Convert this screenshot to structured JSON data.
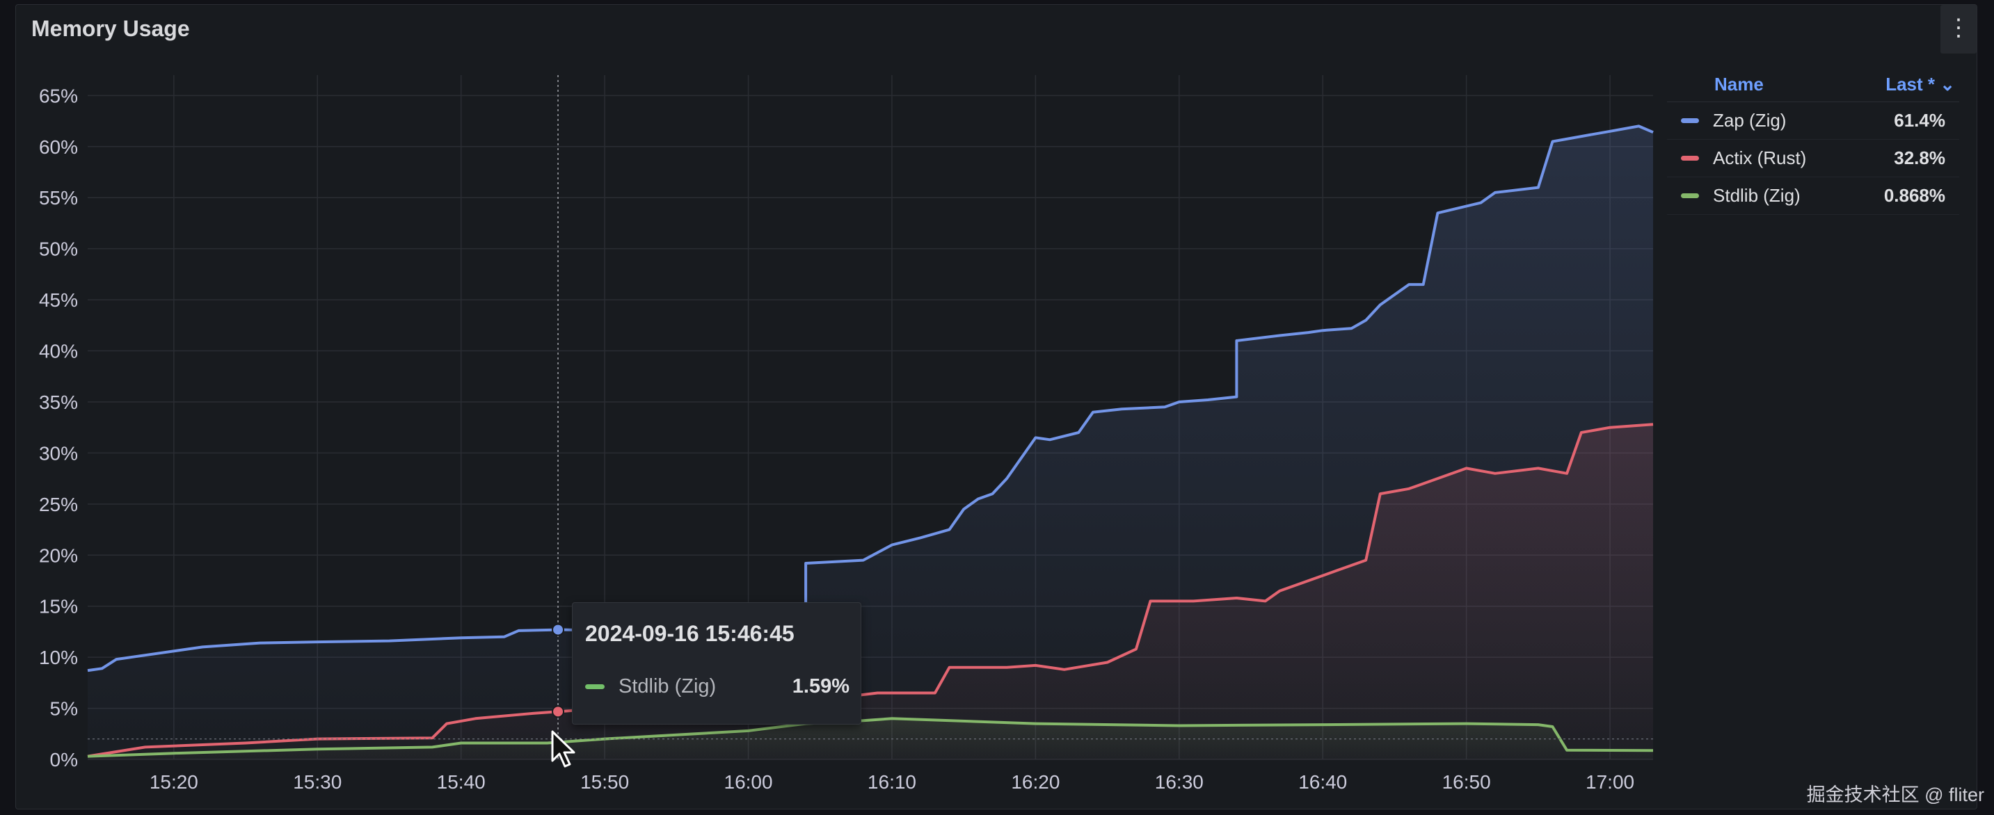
{
  "panel": {
    "title": "Memory Usage",
    "menu_icon": "⋮"
  },
  "legend": {
    "name_header": "Name",
    "last_header": "Last * ⌄",
    "items": [
      {
        "name": "Zap (Zig)",
        "value": "61.4%",
        "color": "#7395e8"
      },
      {
        "name": "Actix (Rust)",
        "value": "32.8%",
        "color": "#e36571"
      },
      {
        "name": "Stdlib (Zig)",
        "value": "0.868%",
        "color": "#85b86a"
      }
    ]
  },
  "tooltip": {
    "time": "2024-09-16 15:46:45",
    "series": "Stdlib (Zig)",
    "value": "1.59%",
    "color": "#73bf69"
  },
  "watermark": "掘金技术社区 @ fliter",
  "chart_data": {
    "type": "line",
    "title": "Memory Usage",
    "xlabel": "",
    "ylabel": "",
    "x_range": [
      "15:14",
      "17:03"
    ],
    "xticks": [
      "15:20",
      "15:30",
      "15:40",
      "15:50",
      "16:00",
      "16:10",
      "16:20",
      "16:30",
      "16:40",
      "16:50",
      "17:00"
    ],
    "xtick_minutes": [
      20,
      30,
      40,
      50,
      60,
      70,
      80,
      90,
      100,
      110,
      120
    ],
    "ylim": [
      0,
      67
    ],
    "yticks": [
      "0%",
      "5%",
      "10%",
      "15%",
      "20%",
      "25%",
      "30%",
      "35%",
      "40%",
      "45%",
      "50%",
      "55%",
      "60%",
      "65%"
    ],
    "ytick_values": [
      0,
      5,
      10,
      15,
      20,
      25,
      30,
      35,
      40,
      45,
      50,
      55,
      60,
      65
    ],
    "grid": true,
    "legend_position": "right",
    "crosshair_time": "15:46:45",
    "series": [
      {
        "name": "Zap (Zig)",
        "color": "#7395e8",
        "x": [
          "15:14",
          "15:15",
          "15:16",
          "15:18",
          "15:22",
          "15:26",
          "15:30",
          "15:35",
          "15:40",
          "15:43",
          "15:44",
          "15:47",
          "15:50",
          "15:55",
          "16:00",
          "16:04",
          "16:04",
          "16:08",
          "16:10",
          "16:12",
          "16:14",
          "16:15",
          "16:16",
          "16:17",
          "16:18",
          "16:20",
          "16:21",
          "16:23",
          "16:24",
          "16:26",
          "16:26",
          "16:29",
          "16:30",
          "16:32",
          "16:34",
          "16:34",
          "16:37",
          "16:39",
          "16:40",
          "16:42",
          "16:43",
          "16:44",
          "16:46",
          "16:47",
          "16:48",
          "16:48",
          "16:51",
          "16:52",
          "16:55",
          "16:56",
          "16:58",
          "17:00",
          "17:02",
          "17:03"
        ],
        "y": [
          8.7,
          8.9,
          9.8,
          10.2,
          11.0,
          11.4,
          11.5,
          11.6,
          11.9,
          12.0,
          12.6,
          12.7,
          12.6,
          12.6,
          12.6,
          12.6,
          19.2,
          19.5,
          21.0,
          21.7,
          22.5,
          24.5,
          25.5,
          26.0,
          27.5,
          31.5,
          31.3,
          32.0,
          34.0,
          34.3,
          34.3,
          34.5,
          35.0,
          35.2,
          35.5,
          41.0,
          41.5,
          41.8,
          42.0,
          42.2,
          43.0,
          44.5,
          46.5,
          46.5,
          53.5,
          53.5,
          54.5,
          55.5,
          56.0,
          60.5,
          61.0,
          61.5,
          62.0,
          61.4
        ]
      },
      {
        "name": "Actix (Rust)",
        "color": "#e36571",
        "x": [
          "15:14",
          "15:18",
          "15:25",
          "15:30",
          "15:38",
          "15:39",
          "15:41",
          "15:45",
          "15:46",
          "15:50",
          "15:55",
          "16:00",
          "16:04",
          "16:06",
          "16:09",
          "16:13",
          "16:14",
          "16:18",
          "16:20",
          "16:22",
          "16:25",
          "16:27",
          "16:28",
          "16:31",
          "16:34",
          "16:36",
          "16:37",
          "16:41",
          "16:43",
          "16:44",
          "16:46",
          "16:47",
          "16:50",
          "16:52",
          "16:55",
          "16:57",
          "16:58",
          "17:00",
          "17:03"
        ],
        "y": [
          0.3,
          1.2,
          1.6,
          2.0,
          2.1,
          3.5,
          4.0,
          4.5,
          4.6,
          5.0,
          5.2,
          5.4,
          5.5,
          6.0,
          6.5,
          6.5,
          9.0,
          9.0,
          9.2,
          8.8,
          9.5,
          10.8,
          15.5,
          15.5,
          15.8,
          15.5,
          16.5,
          18.5,
          19.5,
          26.0,
          26.5,
          27.0,
          28.5,
          28.0,
          28.5,
          28.0,
          32.0,
          32.5,
          32.8
        ]
      },
      {
        "name": "Stdlib (Zig)",
        "color": "#85b86a",
        "x": [
          "15:14",
          "15:20",
          "15:30",
          "15:38",
          "15:40",
          "15:46",
          "15:50",
          "15:55",
          "16:00",
          "16:04",
          "16:08",
          "16:10",
          "16:20",
          "16:30",
          "16:40",
          "16:50",
          "16:55",
          "16:56",
          "16:57",
          "17:03"
        ],
        "y": [
          0.3,
          0.6,
          1.0,
          1.2,
          1.6,
          1.6,
          2.0,
          2.4,
          2.8,
          3.5,
          3.8,
          4.0,
          3.5,
          3.3,
          3.4,
          3.5,
          3.4,
          3.2,
          0.9,
          0.87
        ]
      }
    ]
  }
}
